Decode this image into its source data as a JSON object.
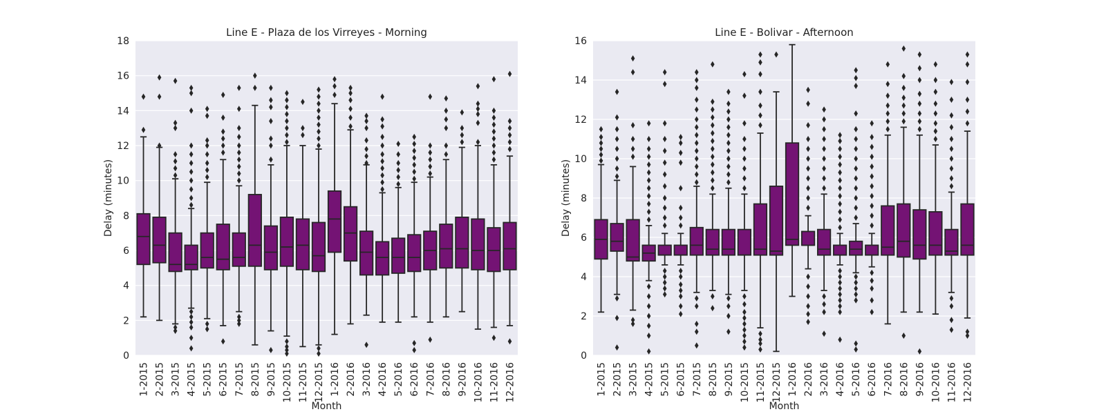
{
  "chart_data": [
    {
      "type": "box",
      "title": "Line E - Plaza de los Virreyes - Morning",
      "xlabel": "Month",
      "ylabel": "Delay (minutes)",
      "ylim": [
        0,
        18
      ],
      "yticks": [
        0,
        2,
        4,
        6,
        8,
        10,
        12,
        14,
        16,
        18
      ],
      "grid": true,
      "color": "#741374",
      "categories": [
        "1-2015",
        "2-2015",
        "3-2015",
        "4-2015",
        "5-2015",
        "6-2015",
        "7-2015",
        "8-2015",
        "9-2015",
        "10-2015",
        "11-2015",
        "12-2015",
        "1-2016",
        "2-2016",
        "3-2016",
        "4-2016",
        "5-2016",
        "6-2016",
        "7-2016",
        "8-2016",
        "9-2016",
        "10-2016",
        "11-2016",
        "12-2016"
      ],
      "boxes": [
        {
          "q1": 5.2,
          "median": 6.8,
          "q3": 8.1,
          "whisker_low": 2.2,
          "whisker_high": 12.5,
          "outliers": [
            12.9,
            14.8
          ]
        },
        {
          "q1": 5.3,
          "median": 6.3,
          "q3": 7.9,
          "whisker_low": 2.0,
          "whisker_high": 11.9,
          "outliers": [
            12.0,
            14.8,
            15.9
          ]
        },
        {
          "q1": 4.8,
          "median": 5.2,
          "q3": 7.0,
          "whisker_low": 1.8,
          "whisker_high": 10.1,
          "outliers": [
            10.3,
            10.7,
            11.1,
            11.5,
            13.0,
            13.3,
            15.7,
            1.6,
            1.4
          ]
        },
        {
          "q1": 4.9,
          "median": 5.2,
          "q3": 6.3,
          "whisker_low": 2.7,
          "whisker_high": 8.4,
          "outliers": [
            8.6,
            9.0,
            9.5,
            10.0,
            10.5,
            11.0,
            11.5,
            12.0,
            14.0,
            15.0,
            15.3,
            2.5,
            2.2,
            1.9,
            1.6,
            1.0,
            0.4
          ]
        },
        {
          "q1": 5.0,
          "median": 5.6,
          "q3": 7.0,
          "whisker_low": 2.1,
          "whisker_high": 9.9,
          "outliers": [
            10.2,
            10.6,
            11.0,
            11.5,
            12.0,
            12.3,
            13.7,
            14.1,
            1.8,
            1.5
          ]
        },
        {
          "q1": 4.9,
          "median": 5.5,
          "q3": 7.5,
          "whisker_low": 1.7,
          "whisker_high": 11.2,
          "outliers": [
            11.6,
            12.0,
            12.4,
            12.8,
            13.6,
            14.9,
            0.8
          ]
        },
        {
          "q1": 5.1,
          "median": 5.6,
          "q3": 7.0,
          "whisker_low": 2.5,
          "whisker_high": 9.7,
          "outliers": [
            10.0,
            10.4,
            10.8,
            11.2,
            11.6,
            12.0,
            12.5,
            13.0,
            14.1,
            15.3,
            2.2,
            2.0,
            1.8
          ]
        },
        {
          "q1": 5.1,
          "median": 6.3,
          "q3": 9.2,
          "whisker_low": 0.6,
          "whisker_high": 14.3,
          "outliers": [
            15.3,
            16.0
          ]
        },
        {
          "q1": 4.9,
          "median": 5.9,
          "q3": 7.4,
          "whisker_low": 1.4,
          "whisker_high": 10.9,
          "outliers": [
            11.2,
            12.0,
            12.4,
            13.4,
            14.2,
            14.6,
            15.3,
            0.3
          ]
        },
        {
          "q1": 5.1,
          "median": 6.2,
          "q3": 7.9,
          "whisker_low": 1.1,
          "whisker_high": 12.0,
          "outliers": [
            12.2,
            12.6,
            13.0,
            13.4,
            13.8,
            14.2,
            14.6,
            15.0,
            0.8,
            0.5,
            0.3,
            0.1
          ]
        },
        {
          "q1": 4.9,
          "median": 6.3,
          "q3": 7.8,
          "whisker_low": 0.5,
          "whisker_high": 12.0,
          "outliers": [
            12.6,
            13.0,
            14.5
          ]
        },
        {
          "q1": 4.8,
          "median": 5.7,
          "q3": 7.6,
          "whisker_low": 0.6,
          "whisker_high": 11.8,
          "outliers": [
            12.0,
            12.4,
            12.8,
            13.2,
            13.6,
            14.0,
            14.4,
            14.8,
            15.2,
            0.4,
            0.1
          ]
        },
        {
          "q1": 5.9,
          "median": 7.8,
          "q3": 9.4,
          "whisker_low": 1.2,
          "whisker_high": 14.4,
          "outliers": [
            14.9,
            15.4,
            15.8
          ]
        },
        {
          "q1": 5.4,
          "median": 7.0,
          "q3": 8.5,
          "whisker_low": 1.8,
          "whisker_high": 12.9,
          "outliers": [
            13.1,
            13.6,
            14.1,
            14.6,
            15.0,
            15.3
          ]
        },
        {
          "q1": 4.6,
          "median": 5.9,
          "q3": 7.1,
          "whisker_low": 2.3,
          "whisker_high": 10.9,
          "outliers": [
            11.0,
            11.4,
            11.8,
            12.3,
            13.0,
            13.4,
            13.7,
            0.6
          ]
        },
        {
          "q1": 4.6,
          "median": 5.6,
          "q3": 6.5,
          "whisker_low": 1.9,
          "whisker_high": 9.3,
          "outliers": [
            9.5,
            9.9,
            10.3,
            10.7,
            11.1,
            11.5,
            12.0,
            12.5,
            13.1,
            13.5,
            14.8
          ]
        },
        {
          "q1": 4.7,
          "median": 5.6,
          "q3": 6.7,
          "whisker_low": 1.9,
          "whisker_high": 9.6,
          "outliers": [
            9.8,
            10.2,
            10.6,
            11.0,
            11.5,
            12.1
          ]
        },
        {
          "q1": 4.8,
          "median": 5.6,
          "q3": 6.9,
          "whisker_low": 2.2,
          "whisker_high": 9.9,
          "outliers": [
            10.1,
            10.5,
            10.9,
            11.3,
            11.7,
            12.1,
            12.5,
            0.7,
            0.3
          ]
        },
        {
          "q1": 4.9,
          "median": 6.0,
          "q3": 7.1,
          "whisker_low": 1.9,
          "whisker_high": 10.2,
          "outliers": [
            10.4,
            10.8,
            11.2,
            11.6,
            12.0,
            14.8,
            0.9
          ]
        },
        {
          "q1": 5.0,
          "median": 6.1,
          "q3": 7.5,
          "whisker_low": 2.2,
          "whisker_high": 11.2,
          "outliers": [
            11.5,
            12.0,
            13.0,
            13.5,
            14.0,
            14.7
          ]
        },
        {
          "q1": 5.0,
          "median": 6.1,
          "q3": 7.9,
          "whisker_low": 2.5,
          "whisker_high": 11.9,
          "outliers": [
            12.2,
            12.6,
            13.0,
            13.9
          ]
        },
        {
          "q1": 4.9,
          "median": 6.0,
          "q3": 7.8,
          "whisker_low": 1.5,
          "whisker_high": 12.0,
          "outliers": [
            12.2,
            13.3,
            13.8,
            14.1,
            14.4,
            15.4
          ]
        },
        {
          "q1": 4.8,
          "median": 6.0,
          "q3": 7.3,
          "whisker_low": 1.6,
          "whisker_high": 10.9,
          "outliers": [
            11.2,
            11.6,
            12.0,
            12.4,
            12.8,
            13.2,
            13.6,
            14.0,
            15.8,
            1.0
          ]
        },
        {
          "q1": 4.9,
          "median": 6.1,
          "q3": 7.6,
          "whisker_low": 1.7,
          "whisker_high": 11.4,
          "outliers": [
            11.8,
            12.2,
            12.6,
            13.0,
            13.4,
            16.1,
            0.8
          ]
        }
      ]
    },
    {
      "type": "box",
      "title": "Line E - Bolivar - Afternoon",
      "xlabel": "Month",
      "ylabel": "Delay (minutes)",
      "ylim": [
        0,
        16
      ],
      "yticks": [
        0,
        2,
        4,
        6,
        8,
        10,
        12,
        14,
        16
      ],
      "grid": true,
      "color": "#741374",
      "categories": [
        "1-2015",
        "2-2015",
        "3-2015",
        "4-2015",
        "5-2015",
        "6-2015",
        "7-2015",
        "8-2015",
        "9-2015",
        "10-2015",
        "11-2015",
        "12-2015",
        "1-2016",
        "2-2016",
        "3-2016",
        "4-2016",
        "5-2016",
        "6-2016",
        "7-2016",
        "8-2016",
        "9-2016",
        "10-2016",
        "11-2016",
        "12-2016"
      ],
      "boxes": [
        {
          "q1": 4.9,
          "median": 5.9,
          "q3": 6.9,
          "whisker_low": 2.2,
          "whisker_high": 9.7,
          "outliers": [
            9.9,
            10.2,
            10.5,
            10.8,
            11.1,
            11.5
          ]
        },
        {
          "q1": 5.3,
          "median": 5.8,
          "q3": 6.7,
          "whisker_low": 3.1,
          "whisker_high": 8.9,
          "outliers": [
            9.1,
            9.5,
            10.0,
            10.5,
            11.0,
            11.5,
            12.1,
            13.4,
            2.9,
            1.9,
            0.4
          ]
        },
        {
          "q1": 4.8,
          "median": 5.0,
          "q3": 6.9,
          "whisker_low": 2.3,
          "whisker_high": 9.6,
          "outliers": [
            10.1,
            10.5,
            11.0,
            11.7,
            14.4,
            15.1,
            1.8,
            1.6
          ]
        },
        {
          "q1": 4.8,
          "median": 5.2,
          "q3": 5.6,
          "whisker_low": 3.8,
          "whisker_high": 6.6,
          "outliers": [
            6.9,
            7.3,
            7.7,
            8.1,
            8.5,
            8.9,
            9.3,
            9.7,
            10.1,
            10.5,
            11.0,
            11.8,
            3.5,
            3.0,
            2.5,
            2.0,
            1.5,
            1.0,
            0.2
          ]
        },
        {
          "q1": 5.1,
          "median": 5.1,
          "q3": 5.6,
          "whisker_low": 4.6,
          "whisker_high": 6.2,
          "outliers": [
            6.6,
            7.0,
            7.5,
            8.0,
            8.6,
            9.2,
            9.8,
            10.4,
            11.0,
            11.8,
            13.8,
            14.4,
            4.3,
            4.0,
            3.7,
            3.4,
            3.1
          ]
        },
        {
          "q1": 5.1,
          "median": 5.1,
          "q3": 5.6,
          "whisker_low": 4.6,
          "whisker_high": 6.2,
          "outliers": [
            6.6,
            7.0,
            7.5,
            8.5,
            9.8,
            10.3,
            10.8,
            11.1,
            4.3,
            4.0,
            3.6,
            3.3,
            3.0,
            2.5,
            2.1
          ]
        },
        {
          "q1": 5.1,
          "median": 5.6,
          "q3": 6.5,
          "whisker_low": 3.2,
          "whisker_high": 8.6,
          "outliers": [
            8.8,
            9.2,
            9.6,
            10.0,
            10.4,
            10.8,
            11.2,
            11.6,
            12.0,
            12.5,
            13.0,
            13.6,
            14.0,
            14.4,
            2.9,
            2.5,
            1.6,
            1.2,
            0.5
          ]
        },
        {
          "q1": 5.1,
          "median": 5.4,
          "q3": 6.4,
          "whisker_low": 3.3,
          "whisker_high": 8.2,
          "outliers": [
            8.5,
            8.9,
            9.3,
            9.7,
            10.1,
            10.5,
            10.9,
            11.3,
            11.7,
            12.1,
            12.5,
            12.9,
            14.8,
            3.0,
            2.4
          ]
        },
        {
          "q1": 5.1,
          "median": 5.4,
          "q3": 6.4,
          "whisker_low": 3.1,
          "whisker_high": 8.5,
          "outliers": [
            8.8,
            9.2,
            9.6,
            10.0,
            10.4,
            10.8,
            11.2,
            11.6,
            12.0,
            12.4,
            12.8,
            13.4,
            2.9,
            2.5,
            2.0,
            1.2
          ]
        },
        {
          "q1": 5.1,
          "median": 5.1,
          "q3": 6.4,
          "whisker_low": 3.3,
          "whisker_high": 8.2,
          "outliers": [
            8.5,
            9.0,
            9.5,
            10.0,
            10.5,
            11.0,
            11.8,
            13.2,
            14.3,
            3.0,
            2.6,
            2.2,
            1.9,
            1.6,
            1.3,
            1.0,
            0.7,
            0.4
          ]
        },
        {
          "q1": 5.1,
          "median": 5.4,
          "q3": 7.7,
          "whisker_low": 1.4,
          "whisker_high": 11.3,
          "outliers": [
            11.7,
            12.2,
            12.7,
            13.4,
            14.3,
            14.9,
            15.3,
            1.1,
            0.8,
            0.6,
            0.3
          ]
        },
        {
          "q1": 5.1,
          "median": 5.3,
          "q3": 8.6,
          "whisker_low": 0.2,
          "whisker_high": 13.4,
          "outliers": [
            15.3
          ]
        },
        {
          "q1": 5.6,
          "median": 5.9,
          "q3": 10.8,
          "whisker_low": 3.0,
          "whisker_high": 15.8,
          "outliers": []
        },
        {
          "q1": 5.6,
          "median": 5.6,
          "q3": 6.3,
          "whisker_low": 4.4,
          "whisker_high": 7.1,
          "outliers": [
            7.5,
            8.0,
            8.5,
            9.0,
            9.5,
            10.0,
            10.5,
            11.0,
            11.7,
            12.8,
            13.5,
            4.0,
            3.5,
            3.0,
            2.5,
            2.1,
            1.7
          ]
        },
        {
          "q1": 5.1,
          "median": 5.4,
          "q3": 6.4,
          "whisker_low": 3.3,
          "whisker_high": 8.2,
          "outliers": [
            8.5,
            9.0,
            9.5,
            10.0,
            10.5,
            11.0,
            11.5,
            12.0,
            12.5,
            3.0,
            2.6,
            2.2,
            1.1
          ]
        },
        {
          "q1": 5.1,
          "median": 5.1,
          "q3": 5.6,
          "whisker_low": 4.6,
          "whisker_high": 6.2,
          "outliers": [
            6.5,
            6.9,
            7.3,
            7.7,
            8.1,
            8.5,
            8.9,
            9.3,
            9.7,
            10.1,
            10.5,
            10.9,
            11.2,
            4.3,
            4.0,
            3.7,
            3.4,
            3.1,
            2.8,
            2.5,
            2.2,
            0.8
          ]
        },
        {
          "q1": 5.1,
          "median": 5.4,
          "q3": 5.8,
          "whisker_low": 4.2,
          "whisker_high": 6.7,
          "outliers": [
            7.0,
            7.5,
            8.0,
            8.5,
            9.0,
            9.5,
            10.0,
            10.5,
            11.0,
            11.5,
            12.3,
            13.7,
            14.1,
            14.5,
            4.0,
            3.7,
            3.4,
            3.1,
            2.8,
            0.6,
            0.3
          ]
        },
        {
          "q1": 5.1,
          "median": 5.1,
          "q3": 5.6,
          "whisker_low": 4.5,
          "whisker_high": 6.2,
          "outliers": [
            6.6,
            7.1,
            7.6,
            8.1,
            8.6,
            9.1,
            9.6,
            10.1,
            10.6,
            11.1,
            11.8,
            4.2,
            3.8,
            3.4,
            2.8,
            2.2
          ]
        },
        {
          "q1": 5.1,
          "median": 5.5,
          "q3": 7.6,
          "whisker_low": 1.6,
          "whisker_high": 11.2,
          "outliers": [
            11.5,
            11.9,
            12.3,
            12.7,
            13.2,
            13.8,
            14.8
          ]
        },
        {
          "q1": 5.0,
          "median": 5.8,
          "q3": 7.7,
          "whisker_low": 2.2,
          "whisker_high": 11.6,
          "outliers": [
            11.9,
            12.3,
            12.7,
            13.1,
            13.6,
            14.2,
            15.6,
            1.0
          ]
        },
        {
          "q1": 4.9,
          "median": 5.6,
          "q3": 7.4,
          "whisker_low": 2.2,
          "whisker_high": 11.2,
          "outliers": [
            11.5,
            11.9,
            12.3,
            12.8,
            13.3,
            14.0,
            14.6,
            15.3,
            0.2
          ]
        },
        {
          "q1": 5.1,
          "median": 5.6,
          "q3": 7.3,
          "whisker_low": 2.1,
          "whisker_high": 10.7,
          "outliers": [
            11.0,
            11.4,
            11.8,
            12.3,
            12.8,
            13.4,
            14.0,
            14.8
          ]
        },
        {
          "q1": 5.1,
          "median": 5.3,
          "q3": 6.4,
          "whisker_low": 3.2,
          "whisker_high": 8.3,
          "outliers": [
            8.6,
            9.0,
            9.5,
            10.0,
            10.5,
            11.0,
            11.6,
            12.2,
            13.0,
            13.9,
            2.9,
            2.5,
            1.8,
            1.3
          ]
        },
        {
          "q1": 5.1,
          "median": 5.6,
          "q3": 7.7,
          "whisker_low": 1.9,
          "whisker_high": 11.4,
          "outliers": [
            11.8,
            12.4,
            13.0,
            13.9,
            14.8,
            15.3,
            1.2,
            1.0
          ]
        }
      ]
    }
  ]
}
